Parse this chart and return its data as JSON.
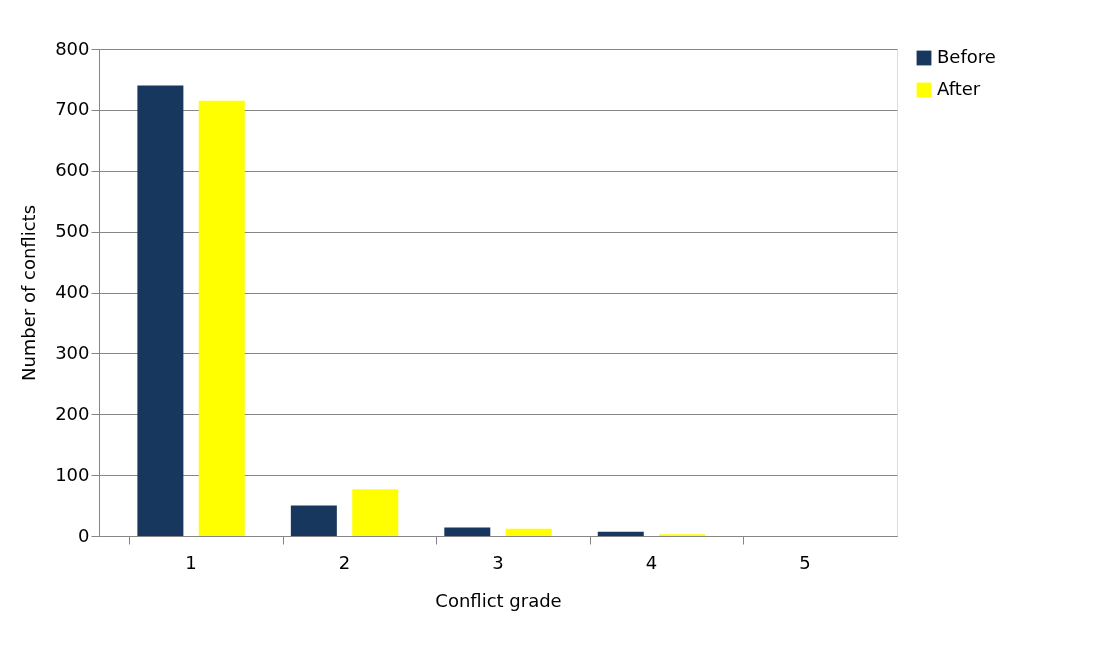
{
  "chart_data": {
    "type": "bar",
    "xlabel": "Conflict grade",
    "ylabel": "Number of conflicts",
    "categories": [
      "1",
      "2",
      "3",
      "4",
      "5"
    ],
    "series": [
      {
        "name": "Before",
        "color": "#17375e",
        "values": [
          740,
          50,
          14,
          7,
          0
        ]
      },
      {
        "name": "After",
        "color": "#ffff00",
        "values": [
          715,
          77,
          12,
          3,
          0
        ]
      }
    ],
    "ylim": [
      0,
      800
    ],
    "yticks": [
      0,
      100,
      200,
      300,
      400,
      500,
      600,
      700,
      800
    ],
    "grid": "y",
    "legend": "right"
  }
}
